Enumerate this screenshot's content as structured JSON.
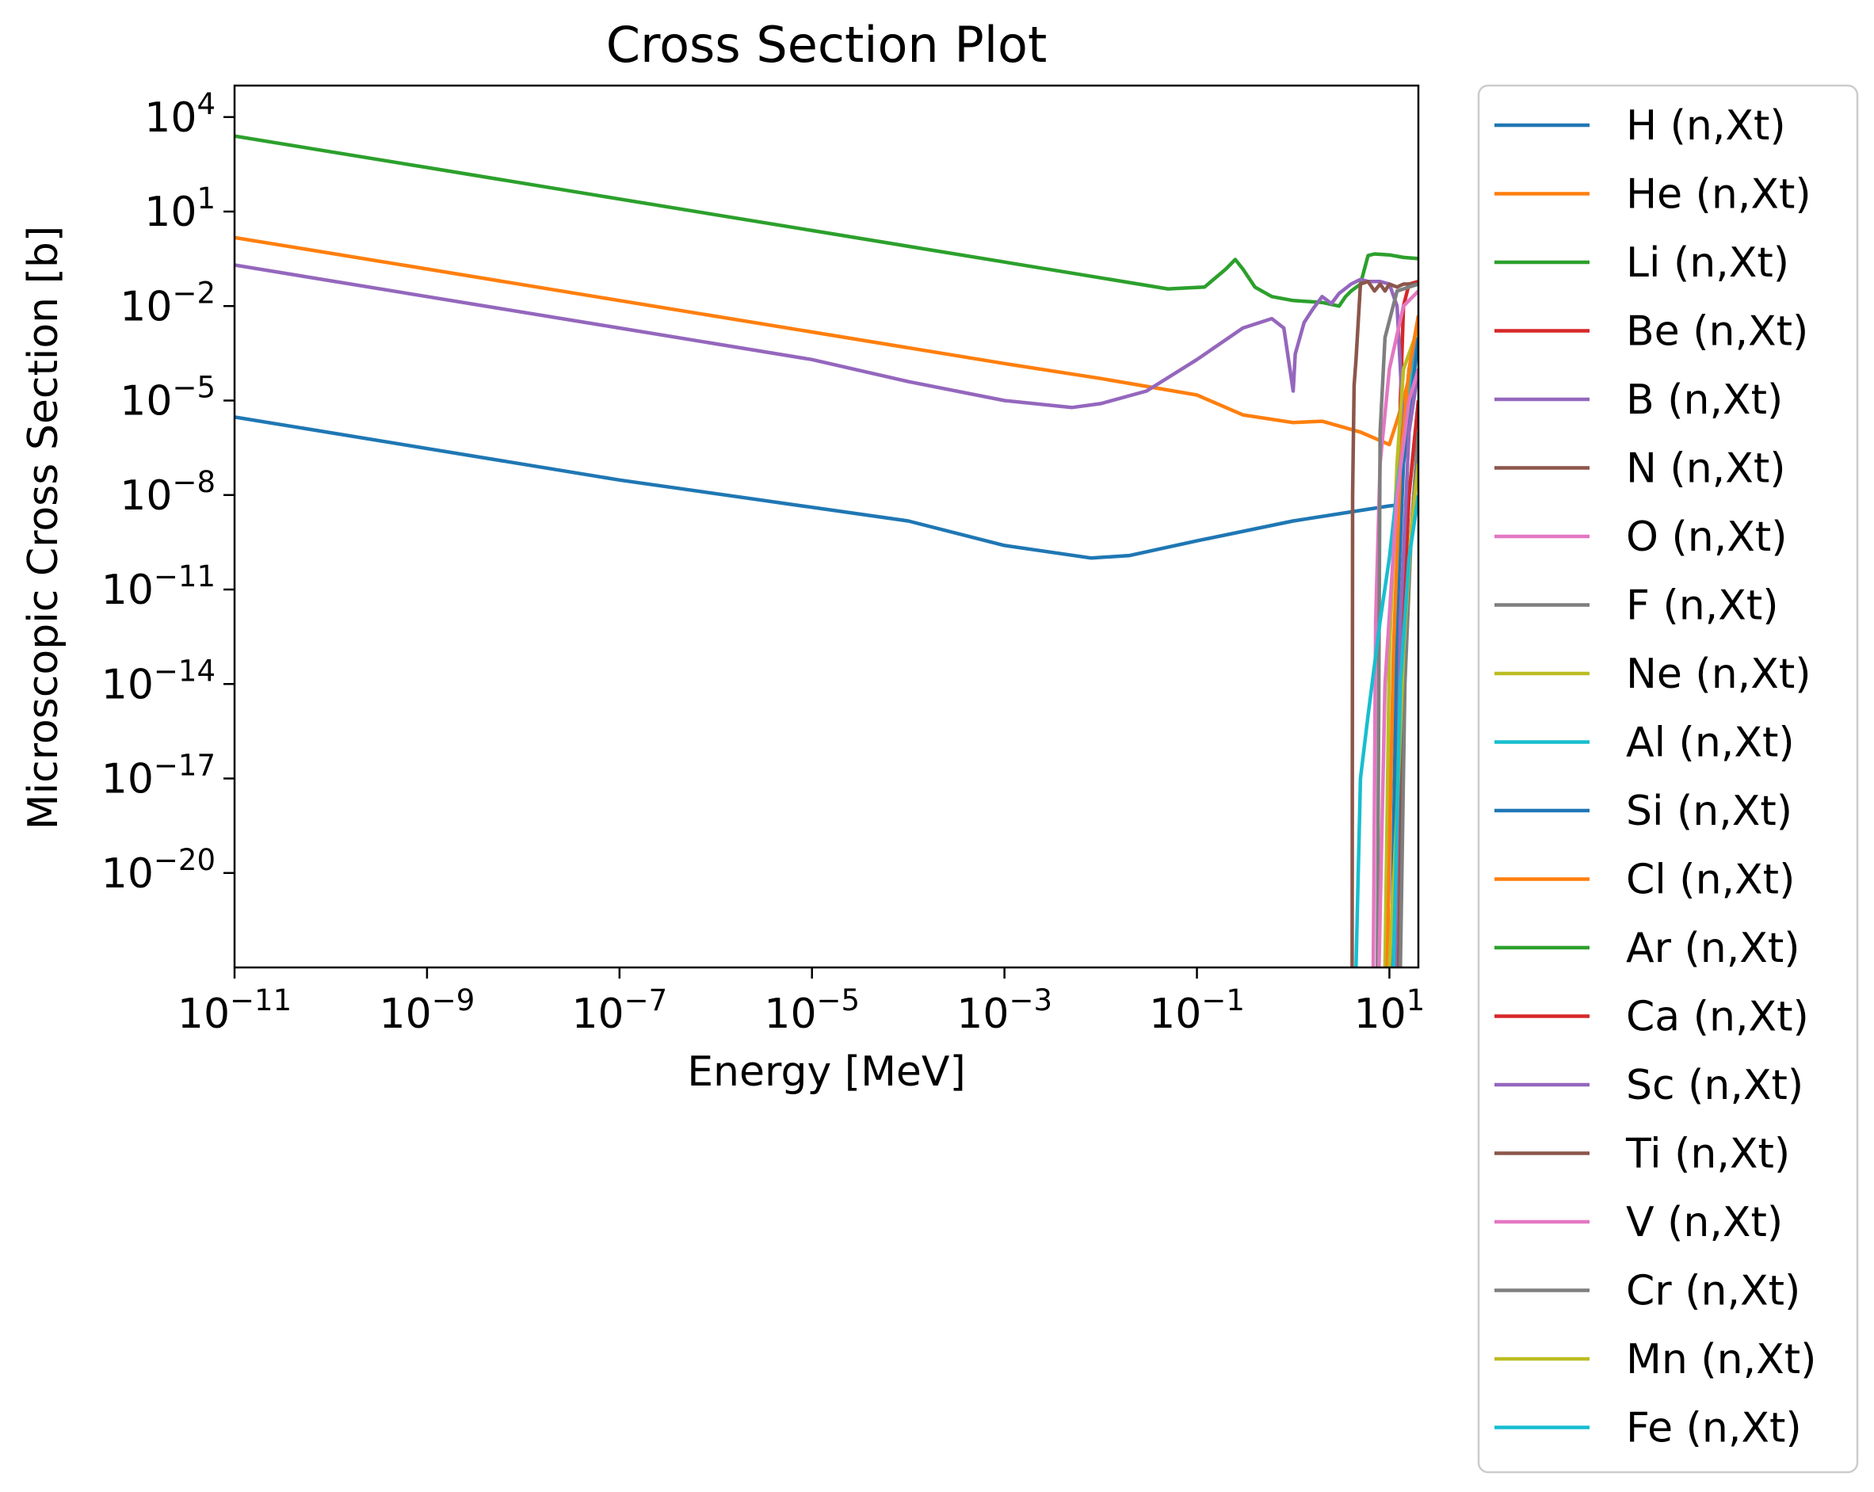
{
  "chart_data": {
    "type": "line",
    "title": "Cross Section Plot",
    "xlabel": "Energy [MeV]",
    "ylabel": "Microscopic Cross Section [b]",
    "x_scale": "log",
    "y_scale": "log",
    "xlim": [
      1e-11,
      20
    ],
    "ylim": [
      1e-23,
      100000.0
    ],
    "grid": false,
    "legend_position": "outside-right",
    "x_ticks": [
      {
        "base": "10",
        "exp": "−11",
        "value": 1e-11
      },
      {
        "base": "10",
        "exp": "−9",
        "value": 1e-09
      },
      {
        "base": "10",
        "exp": "−7",
        "value": 1e-07
      },
      {
        "base": "10",
        "exp": "−5",
        "value": 1e-05
      },
      {
        "base": "10",
        "exp": "−3",
        "value": 0.001
      },
      {
        "base": "10",
        "exp": "−1",
        "value": 0.1
      },
      {
        "base": "10",
        "exp": "1",
        "value": 10
      }
    ],
    "y_ticks": [
      {
        "base": "10",
        "exp": "4",
        "value": 10000.0
      },
      {
        "base": "10",
        "exp": "1",
        "value": 10
      },
      {
        "base": "10",
        "exp": "−2",
        "value": 0.01
      },
      {
        "base": "10",
        "exp": "−5",
        "value": 1e-05
      },
      {
        "base": "10",
        "exp": "−8",
        "value": 1e-08
      },
      {
        "base": "10",
        "exp": "−11",
        "value": 1e-11
      },
      {
        "base": "10",
        "exp": "−14",
        "value": 1e-14
      },
      {
        "base": "10",
        "exp": "−17",
        "value": 1e-17
      },
      {
        "base": "10",
        "exp": "−20",
        "value": 1e-20
      }
    ],
    "series": [
      {
        "name": "H (n,Xt)",
        "color": "#1f77b4",
        "points": [
          [
            1e-11,
            3e-06
          ],
          [
            1e-07,
            3e-08
          ],
          [
            0.0001,
            1.5e-09
          ],
          [
            0.001,
            2.5e-10
          ],
          [
            0.008,
            1e-10
          ],
          [
            0.02,
            1.2e-10
          ],
          [
            0.1,
            3.5e-10
          ],
          [
            1,
            1.5e-09
          ],
          [
            10,
            4.5e-09
          ],
          [
            14,
            5e-09
          ]
        ]
      },
      {
        "name": "He (n,Xt)",
        "color": "#ff7f0e",
        "points": [
          [
            1e-11,
            1.5
          ],
          [
            1e-09,
            0.15
          ],
          [
            1e-07,
            0.015
          ],
          [
            1e-05,
            0.0015
          ],
          [
            0.001,
            0.00015
          ],
          [
            0.01,
            5e-05
          ],
          [
            0.1,
            1.5e-05
          ],
          [
            0.3,
            3.5e-06
          ],
          [
            1,
            2e-06
          ],
          [
            2,
            2.2e-06
          ],
          [
            5,
            1e-06
          ],
          [
            10,
            4e-07
          ],
          [
            14,
            1e-05
          ],
          [
            20,
            0.001
          ]
        ]
      },
      {
        "name": "Li (n,Xt)",
        "color": "#2ca02c",
        "points": [
          [
            1e-11,
            2500
          ],
          [
            1e-09,
            250
          ],
          [
            1e-07,
            25
          ],
          [
            1e-05,
            2.5
          ],
          [
            0.001,
            0.25
          ],
          [
            0.05,
            0.035
          ],
          [
            0.12,
            0.04
          ],
          [
            0.2,
            0.15
          ],
          [
            0.25,
            0.3
          ],
          [
            0.3,
            0.15
          ],
          [
            0.4,
            0.04
          ],
          [
            0.6,
            0.02
          ],
          [
            1,
            0.015
          ],
          [
            2,
            0.013
          ],
          [
            3,
            0.01
          ],
          [
            3.5,
            0.02
          ],
          [
            4,
            0.03
          ],
          [
            5,
            0.05
          ],
          [
            6,
            0.4
          ],
          [
            7,
            0.45
          ],
          [
            10,
            0.42
          ],
          [
            14,
            0.35
          ],
          [
            20,
            0.32
          ]
        ]
      },
      {
        "name": "Be (n,Xt)",
        "color": "#d62728",
        "points": [
          [
            11.5,
            1e-23
          ],
          [
            12,
            1e-12
          ],
          [
            13,
            1e-05
          ],
          [
            14,
            0.01
          ],
          [
            16,
            0.05
          ],
          [
            20,
            0.06
          ]
        ]
      },
      {
        "name": "B (n,Xt)",
        "color": "#9467bd",
        "points": [
          [
            1e-11,
            0.2
          ],
          [
            1e-09,
            0.02
          ],
          [
            1e-07,
            0.002
          ],
          [
            1e-05,
            0.0002
          ],
          [
            0.0001,
            4e-05
          ],
          [
            0.001,
            1e-05
          ],
          [
            0.005,
            6e-06
          ],
          [
            0.01,
            8e-06
          ],
          [
            0.03,
            2e-05
          ],
          [
            0.1,
            0.0002
          ],
          [
            0.3,
            0.002
          ],
          [
            0.6,
            0.004
          ],
          [
            0.8,
            0.002
          ],
          [
            1.0,
            2e-05
          ],
          [
            1.05,
            0.0003
          ],
          [
            1.3,
            0.003
          ],
          [
            1.6,
            0.008
          ],
          [
            2,
            0.02
          ],
          [
            2.5,
            0.012
          ],
          [
            3,
            0.025
          ],
          [
            4,
            0.05
          ],
          [
            5,
            0.07
          ],
          [
            6,
            0.06
          ],
          [
            8,
            0.06
          ],
          [
            10,
            0.05
          ],
          [
            12,
            0.01
          ],
          [
            13,
            0.0001
          ],
          [
            14,
            1e-06
          ],
          [
            16,
            0.0001
          ],
          [
            20,
            0.001
          ]
        ]
      },
      {
        "name": "N (n,Xt)",
        "color": "#8c564b",
        "points": [
          [
            4.1,
            1e-23
          ],
          [
            4.15,
            1e-08
          ],
          [
            4.3,
            3e-05
          ],
          [
            4.5,
            0.0002
          ],
          [
            5,
            0.05
          ],
          [
            6,
            0.06
          ],
          [
            7,
            0.03
          ],
          [
            8,
            0.05
          ],
          [
            9,
            0.03
          ],
          [
            10,
            0.05
          ],
          [
            12,
            0.04
          ],
          [
            14,
            0.05
          ],
          [
            20,
            0.05
          ]
        ]
      },
      {
        "name": "O (n,Xt)",
        "color": "#e377c2",
        "points": [
          [
            6.8,
            1e-23
          ],
          [
            7.2,
            1e-12
          ],
          [
            8,
            1e-07
          ],
          [
            10,
            0.0001
          ],
          [
            14,
            0.01
          ],
          [
            20,
            0.03
          ]
        ]
      },
      {
        "name": "F (n,Xt)",
        "color": "#7f7f7f",
        "points": [
          [
            7.5,
            1e-23
          ],
          [
            8,
            1e-06
          ],
          [
            9,
            0.001
          ],
          [
            12,
            0.03
          ],
          [
            20,
            0.05
          ]
        ]
      },
      {
        "name": "Ne (n,Xt)",
        "color": "#bcbd22",
        "points": [
          [
            9,
            1e-23
          ],
          [
            10,
            1e-13
          ],
          [
            12,
            1e-07
          ],
          [
            14,
            0.0001
          ],
          [
            20,
            0.002
          ]
        ]
      },
      {
        "name": "Al (n,Xt)",
        "color": "#17becf",
        "points": [
          [
            4.5,
            1e-23
          ],
          [
            5,
            1e-17
          ],
          [
            6,
            1e-15
          ],
          [
            8,
            1e-12
          ],
          [
            10,
            1e-10
          ],
          [
            14,
            1e-06
          ],
          [
            20,
            0.001
          ]
        ]
      },
      {
        "name": "Si (n,Xt)",
        "color": "#1f77b4",
        "points": [
          [
            10.5,
            1e-23
          ],
          [
            12,
            1e-12
          ],
          [
            14,
            1e-07
          ],
          [
            20,
            0.001
          ]
        ]
      },
      {
        "name": "Cl (n,Xt)",
        "color": "#ff7f0e",
        "points": [
          [
            9.5,
            1e-23
          ],
          [
            11,
            1e-13
          ],
          [
            13,
            1e-07
          ],
          [
            16,
            0.0001
          ],
          [
            20,
            0.005
          ]
        ]
      },
      {
        "name": "Ar (n,Xt)",
        "color": "#2ca02c",
        "points": [
          [
            11,
            1e-23
          ],
          [
            13,
            1e-13
          ],
          [
            16,
            1e-08
          ],
          [
            20,
            1e-05
          ]
        ]
      },
      {
        "name": "Ca (n,Xt)",
        "color": "#d62728",
        "points": [
          [
            12,
            1e-23
          ],
          [
            13.5,
            1e-13
          ],
          [
            16,
            1e-08
          ],
          [
            20,
            1e-05
          ]
        ]
      },
      {
        "name": "Sc (n,Xt)",
        "color": "#9467bd",
        "points": [
          [
            11.5,
            1e-23
          ],
          [
            13,
            1e-12
          ],
          [
            16,
            1e-06
          ],
          [
            20,
            0.0001
          ]
        ]
      },
      {
        "name": "Ti (n,Xt)",
        "color": "#8c564b",
        "points": [
          [
            12.5,
            1e-23
          ],
          [
            14,
            1e-14
          ],
          [
            17,
            1e-09
          ],
          [
            20,
            1e-06
          ]
        ]
      },
      {
        "name": "V (n,Xt)",
        "color": "#e377c2",
        "points": [
          [
            7.8,
            1e-23
          ],
          [
            9,
            1e-14
          ],
          [
            12,
            1e-08
          ],
          [
            16,
            1e-05
          ],
          [
            20,
            0.0001
          ]
        ]
      },
      {
        "name": "Cr (n,Xt)",
        "color": "#7f7f7f",
        "points": [
          [
            13,
            1e-23
          ],
          [
            14.5,
            1e-14
          ],
          [
            17,
            1e-09
          ],
          [
            20,
            1e-06
          ]
        ]
      },
      {
        "name": "Mn (n,Xt)",
        "color": "#bcbd22",
        "points": [
          [
            10,
            1e-23
          ],
          [
            12,
            1e-18
          ],
          [
            14,
            1e-13
          ],
          [
            17,
            1e-09
          ],
          [
            20,
            1e-07
          ]
        ]
      },
      {
        "name": "Fe (n,Xt)",
        "color": "#17becf",
        "points": [
          [
            11,
            1e-23
          ],
          [
            13,
            1e-14
          ],
          [
            16,
            1e-10
          ],
          [
            20,
            1e-08
          ]
        ]
      }
    ]
  }
}
